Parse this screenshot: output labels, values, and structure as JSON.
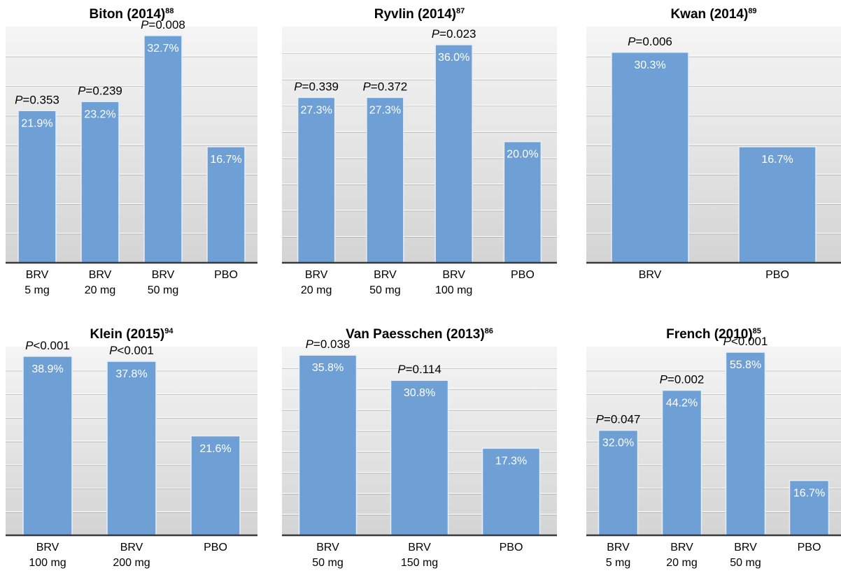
{
  "chart_data": [
    {
      "type": "bar",
      "title": "Biton (2014)",
      "title_sup": "88",
      "categories": [
        [
          "BRV",
          "5 mg"
        ],
        [
          "BRV",
          "20 mg"
        ],
        [
          "BRV",
          "50 mg"
        ],
        [
          "PBO"
        ]
      ],
      "values": [
        21.9,
        23.2,
        32.7,
        16.7
      ],
      "value_labels": [
        "21.9%",
        "23.2%",
        "32.7%",
        "16.7%"
      ],
      "p_values": [
        "=0.353",
        "=0.239",
        "=0.008",
        null
      ],
      "ylim": [
        0,
        34
      ]
    },
    {
      "type": "bar",
      "title": "Ryvlin (2014)",
      "title_sup": "87",
      "categories": [
        [
          "BRV",
          "20 mg"
        ],
        [
          "BRV",
          "50 mg"
        ],
        [
          "BRV",
          "100 mg"
        ],
        [
          "PBO"
        ]
      ],
      "values": [
        27.3,
        27.3,
        36.0,
        20.0
      ],
      "value_labels": [
        "27.3%",
        "27.3%",
        "36.0%",
        "20.0%"
      ],
      "p_values": [
        "=0.339",
        "=0.372",
        "=0.023",
        null
      ],
      "ylim": [
        0,
        39
      ]
    },
    {
      "type": "bar",
      "title": "Kwan (2014)",
      "title_sup": "89",
      "categories": [
        [
          "BRV"
        ],
        [
          "PBO"
        ]
      ],
      "values": [
        30.3,
        16.7
      ],
      "value_labels": [
        "30.3%",
        "16.7%"
      ],
      "p_values": [
        "=0.006",
        null
      ],
      "ylim": [
        0,
        34
      ]
    },
    {
      "type": "bar",
      "title": "Klein (2015)",
      "title_sup": "94",
      "categories": [
        [
          "BRV",
          "100 mg"
        ],
        [
          "BRV",
          "200 mg"
        ],
        [
          "PBO"
        ]
      ],
      "values": [
        38.9,
        37.8,
        21.6
      ],
      "value_labels": [
        "38.9%",
        "37.8%",
        "21.6%"
      ],
      "p_values": [
        "<0.001",
        "<0.001",
        null
      ],
      "ylim": [
        0,
        41
      ]
    },
    {
      "type": "bar",
      "title": "Van Paesschen (2013)",
      "title_sup": "86",
      "categories": [
        [
          "BRV",
          "50 mg"
        ],
        [
          "BRV",
          "150 mg"
        ],
        [
          "PBO"
        ]
      ],
      "values": [
        35.8,
        30.8,
        17.3
      ],
      "value_labels": [
        "35.8%",
        "30.8%",
        "17.3%"
      ],
      "p_values": [
        "=0.038",
        "=0.114",
        null
      ],
      "ylim": [
        0,
        37.5
      ]
    },
    {
      "type": "bar",
      "title": "French (2010)",
      "title_sup": "85",
      "categories": [
        [
          "BRV",
          "5 mg"
        ],
        [
          "BRV",
          "20 mg"
        ],
        [
          "BRV",
          "50 mg"
        ],
        [
          "PBO"
        ]
      ],
      "values": [
        32.0,
        44.2,
        55.8,
        16.7
      ],
      "value_labels": [
        "32.0%",
        "44.2%",
        "55.8%",
        "16.7%"
      ],
      "p_values": [
        "=0.047",
        "=0.002",
        "<0.001",
        null
      ],
      "ylim": [
        0,
        57.5
      ]
    }
  ],
  "p_prefix": "P",
  "colors": {
    "bar": "#6fa0d5",
    "bar_edge": "#e7eef7",
    "axis": "#3a3a3a",
    "grid": "#8c8c8c",
    "panel_top": "#f3f3f3",
    "panel_bottom": "#d6d6d6"
  }
}
